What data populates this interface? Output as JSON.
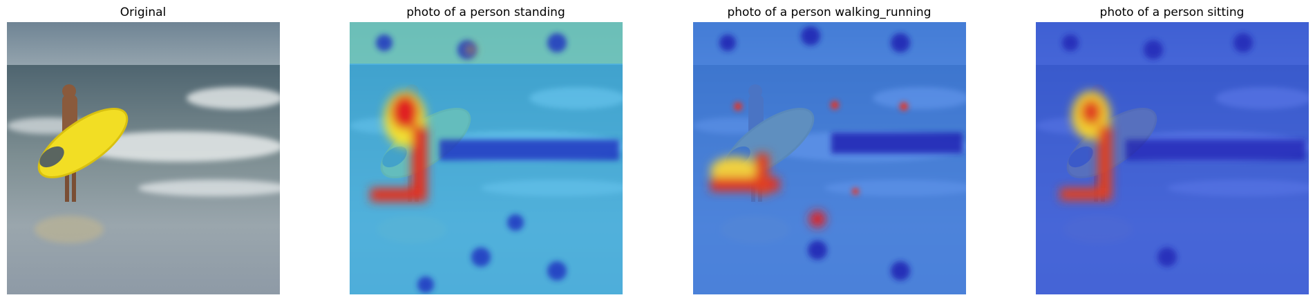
{
  "panels": [
    {
      "title": "Original"
    },
    {
      "title": "photo of a person standing"
    },
    {
      "title": "photo of a person walking_running"
    },
    {
      "title": "photo of a person sitting"
    }
  ]
}
